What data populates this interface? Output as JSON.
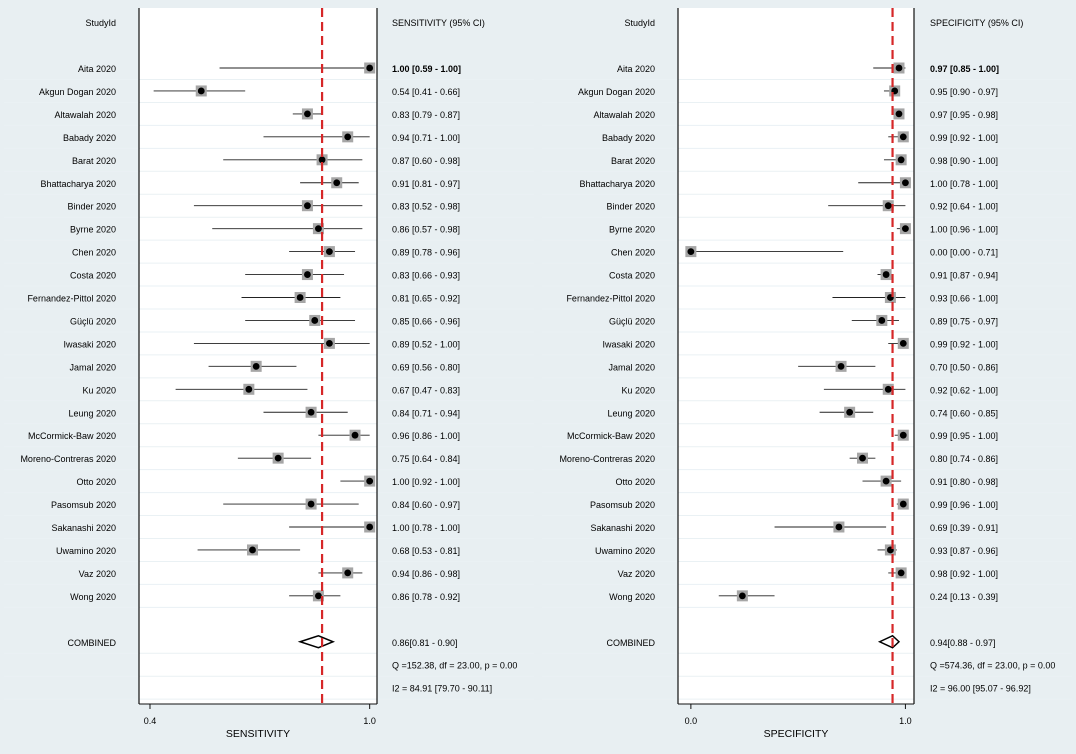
{
  "colors": {
    "background": "#e8eff2",
    "plot_bg": "#ffffff",
    "row_stripe": "#eaf1f4",
    "reference_line": "#d62728",
    "box": "#a6a6a6",
    "point": "#000000"
  },
  "panels": [
    {
      "id": "sensitivity",
      "header_study": "StudyId",
      "header_estimate": "SENSITIVITY (95% CI)",
      "xlabel": "SENSITIVITY",
      "xticks": [
        {
          "value": 0.4,
          "label": "0.4"
        },
        {
          "value": 1.0,
          "label": "1.0"
        }
      ],
      "xlim": [
        0.37,
        1.02
      ],
      "ref_line": 0.87
    },
    {
      "id": "specificity",
      "header_study": "StudyId",
      "header_estimate": "SPECIFICITY (95% CI)",
      "xlabel": "SPECIFICITY",
      "xticks": [
        {
          "value": 0.0,
          "label": "0.0"
        },
        {
          "value": 1.0,
          "label": "1.0"
        }
      ],
      "xlim": [
        -0.06,
        1.04
      ],
      "ref_line": 0.94
    }
  ],
  "chart_data": [
    {
      "type": "forest",
      "measure": "SENSITIVITY",
      "studies": [
        {
          "name": "Aita 2020",
          "est": 1.0,
          "lo": 0.59,
          "hi": 1.0,
          "label": "1.00 [0.59 - 1.00]"
        },
        {
          "name": "Akgun Dogan 2020",
          "est": 0.54,
          "lo": 0.41,
          "hi": 0.66,
          "label": "0.54 [0.41 - 0.66]"
        },
        {
          "name": "Altawalah 2020",
          "est": 0.83,
          "lo": 0.79,
          "hi": 0.87,
          "label": "0.83 [0.79 - 0.87]"
        },
        {
          "name": "Babady 2020",
          "est": 0.94,
          "lo": 0.71,
          "hi": 1.0,
          "label": "0.94 [0.71 - 1.00]"
        },
        {
          "name": "Barat 2020",
          "est": 0.87,
          "lo": 0.6,
          "hi": 0.98,
          "label": "0.87 [0.60 - 0.98]"
        },
        {
          "name": "Bhattacharya 2020",
          "est": 0.91,
          "lo": 0.81,
          "hi": 0.97,
          "label": "0.91 [0.81 - 0.97]"
        },
        {
          "name": "Binder 2020",
          "est": 0.83,
          "lo": 0.52,
          "hi": 0.98,
          "label": "0.83 [0.52 - 0.98]"
        },
        {
          "name": "Byrne 2020",
          "est": 0.86,
          "lo": 0.57,
          "hi": 0.98,
          "label": "0.86 [0.57 - 0.98]"
        },
        {
          "name": "Chen 2020",
          "est": 0.89,
          "lo": 0.78,
          "hi": 0.96,
          "label": "0.89 [0.78 - 0.96]"
        },
        {
          "name": "Costa 2020",
          "est": 0.83,
          "lo": 0.66,
          "hi": 0.93,
          "label": "0.83 [0.66 - 0.93]"
        },
        {
          "name": "Fernandez-Pittol 2020",
          "est": 0.81,
          "lo": 0.65,
          "hi": 0.92,
          "label": "0.81 [0.65 - 0.92]"
        },
        {
          "name": "Güçlü 2020",
          "est": 0.85,
          "lo": 0.66,
          "hi": 0.96,
          "label": "0.85 [0.66 - 0.96]"
        },
        {
          "name": "Iwasaki 2020",
          "est": 0.89,
          "lo": 0.52,
          "hi": 1.0,
          "label": "0.89 [0.52 - 1.00]"
        },
        {
          "name": "Jamal 2020",
          "est": 0.69,
          "lo": 0.56,
          "hi": 0.8,
          "label": "0.69 [0.56 - 0.80]"
        },
        {
          "name": "Ku 2020",
          "est": 0.67,
          "lo": 0.47,
          "hi": 0.83,
          "label": "0.67 [0.47 - 0.83]"
        },
        {
          "name": "Leung 2020",
          "est": 0.84,
          "lo": 0.71,
          "hi": 0.94,
          "label": "0.84 [0.71 - 0.94]"
        },
        {
          "name": "McCormick-Baw 2020",
          "est": 0.96,
          "lo": 0.86,
          "hi": 1.0,
          "label": "0.96 [0.86 - 1.00]"
        },
        {
          "name": "Moreno-Contreras 2020",
          "est": 0.75,
          "lo": 0.64,
          "hi": 0.84,
          "label": "0.75 [0.64 - 0.84]"
        },
        {
          "name": "Otto 2020",
          "est": 1.0,
          "lo": 0.92,
          "hi": 1.0,
          "label": "1.00 [0.92 - 1.00]"
        },
        {
          "name": "Pasomsub 2020",
          "est": 0.84,
          "lo": 0.6,
          "hi": 0.97,
          "label": "0.84 [0.60 - 0.97]"
        },
        {
          "name": "Sakanashi 2020",
          "est": 1.0,
          "lo": 0.78,
          "hi": 1.0,
          "label": "1.00 [0.78 - 1.00]"
        },
        {
          "name": "Uwamino 2020",
          "est": 0.68,
          "lo": 0.53,
          "hi": 0.81,
          "label": "0.68 [0.53 - 0.81]"
        },
        {
          "name": "Vaz 2020",
          "est": 0.94,
          "lo": 0.86,
          "hi": 0.98,
          "label": "0.94 [0.86 - 0.98]"
        },
        {
          "name": "Wong 2020",
          "est": 0.86,
          "lo": 0.78,
          "hi": 0.92,
          "label": "0.86 [0.78 - 0.92]"
        }
      ],
      "combined": {
        "name": "COMBINED",
        "est": 0.86,
        "lo": 0.81,
        "hi": 0.9,
        "label": "0.86[0.81 - 0.90]"
      },
      "stats": [
        "Q =152.38, df = 23.00, p =  0.00",
        "I2 = 84.91 [79.70 - 90.11]"
      ]
    },
    {
      "type": "forest",
      "measure": "SPECIFICITY",
      "studies": [
        {
          "name": "Aita 2020",
          "est": 0.97,
          "lo": 0.85,
          "hi": 1.0,
          "label": "0.97 [0.85 - 1.00]"
        },
        {
          "name": "Akgun Dogan 2020",
          "est": 0.95,
          "lo": 0.9,
          "hi": 0.97,
          "label": "0.95 [0.90 - 0.97]"
        },
        {
          "name": "Altawalah 2020",
          "est": 0.97,
          "lo": 0.95,
          "hi": 0.98,
          "label": "0.97 [0.95 - 0.98]"
        },
        {
          "name": "Babady 2020",
          "est": 0.99,
          "lo": 0.92,
          "hi": 1.0,
          "label": "0.99 [0.92 - 1.00]"
        },
        {
          "name": "Barat 2020",
          "est": 0.98,
          "lo": 0.9,
          "hi": 1.0,
          "label": "0.98 [0.90 - 1.00]"
        },
        {
          "name": "Bhattacharya 2020",
          "est": 1.0,
          "lo": 0.78,
          "hi": 1.0,
          "label": "1.00 [0.78 - 1.00]"
        },
        {
          "name": "Binder 2020",
          "est": 0.92,
          "lo": 0.64,
          "hi": 1.0,
          "label": "0.92 [0.64 - 1.00]"
        },
        {
          "name": "Byrne 2020",
          "est": 1.0,
          "lo": 0.96,
          "hi": 1.0,
          "label": "1.00 [0.96 - 1.00]"
        },
        {
          "name": "Chen 2020",
          "est": 0.0,
          "lo": 0.0,
          "hi": 0.71,
          "label": "0.00 [0.00 - 0.71]"
        },
        {
          "name": "Costa 2020",
          "est": 0.91,
          "lo": 0.87,
          "hi": 0.94,
          "label": "0.91 [0.87 - 0.94]"
        },
        {
          "name": "Fernandez-Pittol 2020",
          "est": 0.93,
          "lo": 0.66,
          "hi": 1.0,
          "label": "0.93 [0.66 - 1.00]"
        },
        {
          "name": "Güçlü 2020",
          "est": 0.89,
          "lo": 0.75,
          "hi": 0.97,
          "label": "0.89 [0.75 - 0.97]"
        },
        {
          "name": "Iwasaki 2020",
          "est": 0.99,
          "lo": 0.92,
          "hi": 1.0,
          "label": "0.99 [0.92 - 1.00]"
        },
        {
          "name": "Jamal 2020",
          "est": 0.7,
          "lo": 0.5,
          "hi": 0.86,
          "label": "0.70 [0.50 - 0.86]"
        },
        {
          "name": "Ku 2020",
          "est": 0.92,
          "lo": 0.62,
          "hi": 1.0,
          "label": "0.92 [0.62 - 1.00]"
        },
        {
          "name": "Leung 2020",
          "est": 0.74,
          "lo": 0.6,
          "hi": 0.85,
          "label": "0.74 [0.60 - 0.85]"
        },
        {
          "name": "McCormick-Baw 2020",
          "est": 0.99,
          "lo": 0.95,
          "hi": 1.0,
          "label": "0.99 [0.95 - 1.00]"
        },
        {
          "name": "Moreno-Contreras 2020",
          "est": 0.8,
          "lo": 0.74,
          "hi": 0.86,
          "label": "0.80 [0.74 - 0.86]"
        },
        {
          "name": "Otto 2020",
          "est": 0.91,
          "lo": 0.8,
          "hi": 0.98,
          "label": "0.91 [0.80 - 0.98]"
        },
        {
          "name": "Pasomsub 2020",
          "est": 0.99,
          "lo": 0.96,
          "hi": 1.0,
          "label": "0.99 [0.96 - 1.00]"
        },
        {
          "name": "Sakanashi 2020",
          "est": 0.69,
          "lo": 0.39,
          "hi": 0.91,
          "label": "0.69 [0.39 - 0.91]"
        },
        {
          "name": "Uwamino 2020",
          "est": 0.93,
          "lo": 0.87,
          "hi": 0.96,
          "label": "0.93 [0.87 - 0.96]"
        },
        {
          "name": "Vaz 2020",
          "est": 0.98,
          "lo": 0.92,
          "hi": 1.0,
          "label": "0.98 [0.92 - 1.00]"
        },
        {
          "name": "Wong 2020",
          "est": 0.24,
          "lo": 0.13,
          "hi": 0.39,
          "label": "0.24 [0.13 - 0.39]"
        }
      ],
      "combined": {
        "name": "COMBINED",
        "est": 0.94,
        "lo": 0.88,
        "hi": 0.97,
        "label": "0.94[0.88 - 0.97]"
      },
      "stats": [
        "Q =574.36, df = 23.00, p =  0.00",
        "I2 = 96.00 [95.07 - 96.92]"
      ]
    }
  ]
}
